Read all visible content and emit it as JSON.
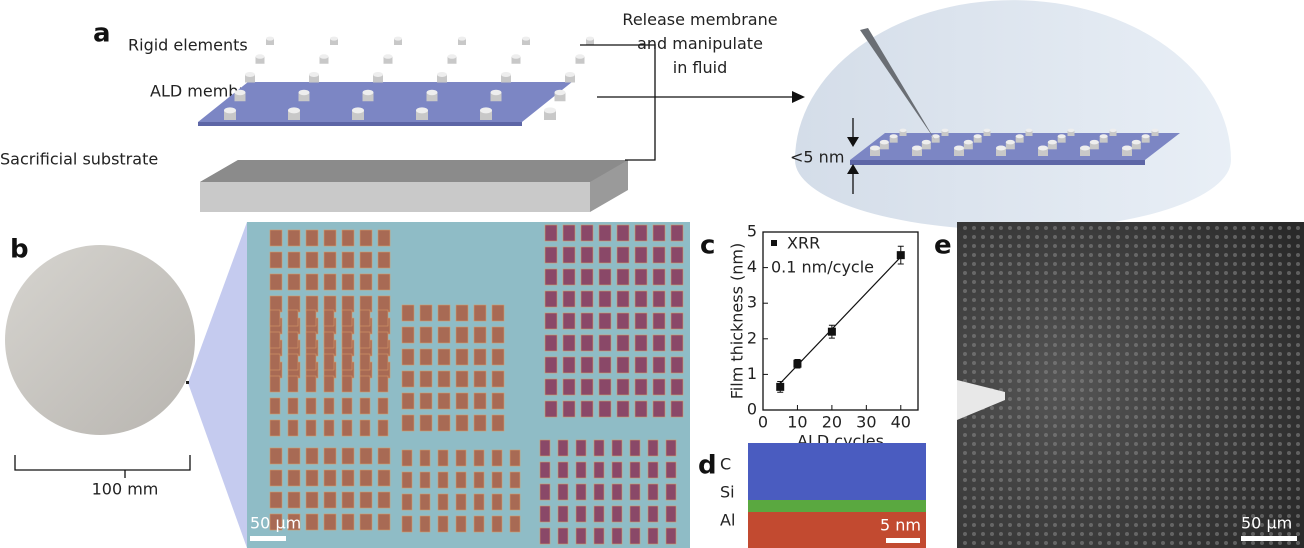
{
  "panels": {
    "a": {
      "label": "a",
      "rigid_elements": "Rigid elements",
      "ald_membrane": "ALD membrane",
      "sacrificial_substrate": "Sacrificial substrate",
      "release_text": [
        "Release membrane",
        "and manipulate",
        "in fluid"
      ],
      "thickness": "<5 nm"
    },
    "b": {
      "label": "b",
      "wafer_scale": "100 mm",
      "micrograph_scale": "50 μm"
    },
    "c": {
      "label": "c",
      "chart": {
        "type": "scatter",
        "xlabel": "ALD cycles",
        "ylabel": "Film thickness (nm)",
        "xlim": [
          0,
          45
        ],
        "xticks": [
          0,
          10,
          20,
          30,
          40
        ],
        "ylim": [
          0,
          5
        ],
        "yticks": [
          0,
          1,
          2,
          3,
          4,
          5
        ],
        "color": "#111",
        "series": [
          {
            "name": "XRR",
            "x": [
              5,
              10,
              20,
              40
            ],
            "values": [
              0.65,
              1.3,
              2.2,
              4.35
            ],
            "errors": [
              0.15,
              0.12,
              0.18,
              0.25
            ]
          },
          {
            "name": "0.1 nm/cycle",
            "x": [
              5,
              40
            ],
            "values": [
              0.75,
              4.3
            ]
          }
        ]
      }
    },
    "d": {
      "label": "d",
      "elements": [
        "C",
        "Si",
        "Al"
      ],
      "colors": [
        "#3a58c8",
        "#4aa838",
        "#d84a2a"
      ],
      "scale": "5 nm"
    },
    "e": {
      "label": "e",
      "scale": "50 μm"
    }
  }
}
